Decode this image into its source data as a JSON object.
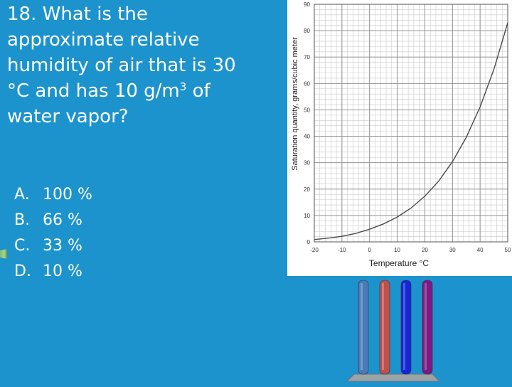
{
  "question": {
    "line1": "18.  What is the",
    "line2": "approximate relative",
    "line3": "humidity of air that is 30",
    "line4_prefix": "°C and has 10 g/m",
    "line4_sup": "3",
    "line4_suffix": " of",
    "line5": "water vapor?"
  },
  "answers": [
    {
      "letter": "A.",
      "text": "100 %"
    },
    {
      "letter": "B.",
      "text": "66 %"
    },
    {
      "letter": "C.",
      "text": "33 %"
    },
    {
      "letter": "D.",
      "text": "10 %"
    }
  ],
  "pointer_icon": "arrow-pointer-icon",
  "chart_data": {
    "type": "line",
    "title": "",
    "xlabel": "Temperature °C",
    "ylabel": "Saturation quantity, grams/cubic meter",
    "xlim": [
      -20,
      50
    ],
    "ylim": [
      0,
      90
    ],
    "grid": true,
    "x_ticks": [
      "-20",
      "-10",
      "0",
      "10",
      "20",
      "30",
      "40",
      "50"
    ],
    "y_ticks": [
      "0",
      "10",
      "20",
      "30",
      "40",
      "50",
      "60",
      "70",
      "80",
      "90"
    ],
    "series": [
      {
        "color": "#4a4a4a",
        "x": [
          -20,
          -15,
          -10,
          -5,
          0,
          5,
          10,
          15,
          20,
          25,
          30,
          35,
          40,
          45,
          50
        ],
        "y": [
          0.9,
          1.4,
          2.1,
          3.2,
          4.8,
          6.8,
          9.4,
          12.8,
          17.3,
          23.0,
          30.4,
          39.6,
          51.1,
          65.4,
          83.0
        ]
      }
    ]
  },
  "bar_graph": {
    "colors": [
      "#4a7ab8",
      "#c0504d",
      "#1426d6",
      "#7b1a86"
    ],
    "values": [
      1,
      1,
      1,
      1
    ]
  }
}
